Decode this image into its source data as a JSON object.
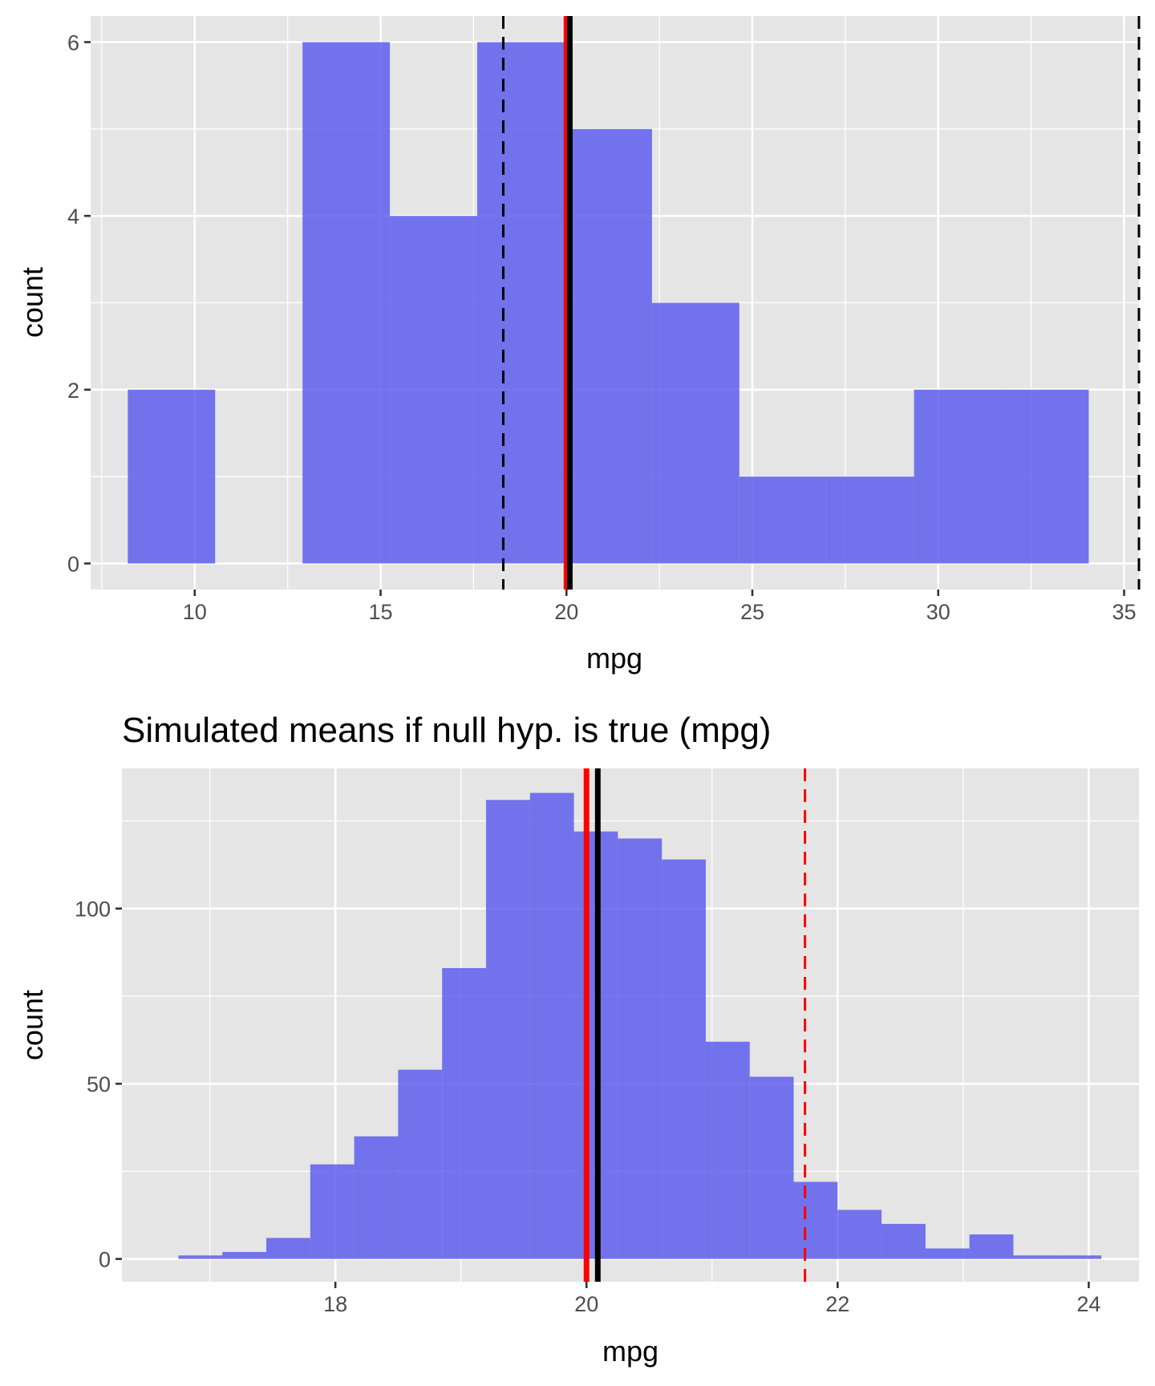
{
  "chart_data": [
    {
      "type": "bar",
      "title": "",
      "xlabel": "mpg",
      "ylabel": "count",
      "xlim": [
        7.2,
        35.4
      ],
      "ylim": [
        -0.3,
        6.3
      ],
      "xticks": [
        10,
        15,
        20,
        25,
        30,
        35
      ],
      "yticks": [
        0,
        2,
        4,
        6
      ],
      "bars": [
        {
          "x0": 8.2,
          "x1": 10.55,
          "count": 2
        },
        {
          "x0": 10.55,
          "x1": 12.9,
          "count": 0
        },
        {
          "x0": 12.9,
          "x1": 15.25,
          "count": 6
        },
        {
          "x0": 15.25,
          "x1": 17.6,
          "count": 4
        },
        {
          "x0": 17.6,
          "x1": 19.95,
          "count": 6
        },
        {
          "x0": 19.95,
          "x1": 22.3,
          "count": 5
        },
        {
          "x0": 22.3,
          "x1": 24.65,
          "count": 3
        },
        {
          "x0": 24.65,
          "x1": 27.0,
          "count": 1
        },
        {
          "x0": 27.0,
          "x1": 29.35,
          "count": 1
        },
        {
          "x0": 29.35,
          "x1": 31.7,
          "count": 2
        },
        {
          "x0": 31.7,
          "x1": 34.05,
          "count": 2
        }
      ],
      "vlines": [
        {
          "x": 18.3,
          "color": "#000000",
          "style": "dashed"
        },
        {
          "x": 35.4,
          "color": "#000000",
          "style": "dashed"
        },
        {
          "x": 20.0,
          "color": "#ff0000",
          "style": "solid"
        },
        {
          "x": 20.09,
          "color": "#000000",
          "style": "solid"
        }
      ],
      "bar_color": "#5555ee",
      "grid": true
    },
    {
      "type": "bar",
      "title": "Simulated means if null hyp. is true (mpg)",
      "xlabel": "mpg",
      "ylabel": "count",
      "xlim": [
        16.3,
        24.4
      ],
      "ylim": [
        -6.5,
        140
      ],
      "xticks": [
        18,
        20,
        22,
        24
      ],
      "yticks": [
        0,
        50,
        100
      ],
      "bars": [
        {
          "x0": 16.75,
          "x1": 17.1,
          "count": 1
        },
        {
          "x0": 17.1,
          "x1": 17.45,
          "count": 2
        },
        {
          "x0": 17.45,
          "x1": 17.8,
          "count": 6
        },
        {
          "x0": 17.8,
          "x1": 18.15,
          "count": 27
        },
        {
          "x0": 18.15,
          "x1": 18.5,
          "count": 35
        },
        {
          "x0": 18.5,
          "x1": 18.85,
          "count": 54
        },
        {
          "x0": 18.85,
          "x1": 19.2,
          "count": 83
        },
        {
          "x0": 19.2,
          "x1": 19.55,
          "count": 131
        },
        {
          "x0": 19.55,
          "x1": 19.9,
          "count": 133
        },
        {
          "x0": 19.9,
          "x1": 20.25,
          "count": 122
        },
        {
          "x0": 20.25,
          "x1": 20.6,
          "count": 120
        },
        {
          "x0": 20.6,
          "x1": 20.95,
          "count": 114
        },
        {
          "x0": 20.95,
          "x1": 21.3,
          "count": 62
        },
        {
          "x0": 21.3,
          "x1": 21.65,
          "count": 52
        },
        {
          "x0": 21.65,
          "x1": 22.0,
          "count": 22
        },
        {
          "x0": 22.0,
          "x1": 22.35,
          "count": 14
        },
        {
          "x0": 22.35,
          "x1": 22.7,
          "count": 10
        },
        {
          "x0": 22.7,
          "x1": 23.05,
          "count": 3
        },
        {
          "x0": 23.05,
          "x1": 23.4,
          "count": 7
        },
        {
          "x0": 23.4,
          "x1": 23.75,
          "count": 1
        },
        {
          "x0": 23.75,
          "x1": 24.1,
          "count": 1
        }
      ],
      "vlines": [
        {
          "x": 21.74,
          "color": "#ff0000",
          "style": "dashed"
        },
        {
          "x": 20.0,
          "color": "#ff0000",
          "style": "solid"
        },
        {
          "x": 20.09,
          "color": "#000000",
          "style": "solid"
        }
      ],
      "bar_color": "#5555ee",
      "grid": true
    }
  ]
}
